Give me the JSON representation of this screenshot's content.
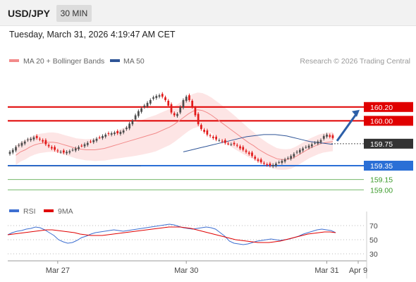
{
  "header": {
    "symbol": "USD/JPY",
    "timeframe": "30 MIN"
  },
  "datetime": "Tuesday, March 31, 2026 4:19:47 AM CET",
  "colors": {
    "up": "#4d4d4d",
    "down": "#e21a1a",
    "ma20": "#f28a8a",
    "ma50": "#2f5597",
    "band": "#fde0e0",
    "resistance": "#e00000",
    "support": "#2a6fd6",
    "target": "#3a9a2a",
    "arrow": "#2c5fa8",
    "rsi": "#3d6fd1",
    "rsi_ma": "#e00000"
  },
  "legend": {
    "ma20": "MA 20 + Bollinger Bands",
    "ma50": "MA 50",
    "rsi": "RSI",
    "rsi_ma": "9MA"
  },
  "copyright": "Research © 2026 Trading Central",
  "chart_data": {
    "type": "candlestick",
    "pair": "USD/JPY",
    "timeframe": "30 MIN",
    "y_range": [
      158.95,
      160.5
    ],
    "levels": [
      {
        "value": 160.2,
        "label": "160.20",
        "role": "resistance"
      },
      {
        "value": 160.0,
        "label": "160.00",
        "role": "resistance"
      },
      {
        "value": 159.75,
        "label": "159.75",
        "role": "current"
      },
      {
        "value": 159.35,
        "label": "159.35",
        "role": "support"
      },
      {
        "value": 159.15,
        "label": "159.15",
        "role": "target"
      },
      {
        "value": 159.0,
        "label": "159.00",
        "role": "target"
      }
    ],
    "x_labels": [
      {
        "index": 16,
        "label": "Mar 27"
      },
      {
        "index": 59,
        "label": "Mar 30"
      },
      {
        "index": 106,
        "label": "Mar 31"
      },
      {
        "index": 125,
        "label": "Apr 9"
      }
    ],
    "closes": [
      159.55,
      159.58,
      159.62,
      159.65,
      159.68,
      159.7,
      159.73,
      159.74,
      159.76,
      159.75,
      159.73,
      159.7,
      159.66,
      159.63,
      159.6,
      159.58,
      159.56,
      159.55,
      159.54,
      159.55,
      159.56,
      159.58,
      159.6,
      159.62,
      159.64,
      159.66,
      159.68,
      159.7,
      159.72,
      159.74,
      159.76,
      159.78,
      159.8,
      159.81,
      159.82,
      159.83,
      159.82,
      159.84,
      159.86,
      159.9,
      159.96,
      160.0,
      160.08,
      160.14,
      160.18,
      160.22,
      160.26,
      160.3,
      160.34,
      160.36,
      160.37,
      160.35,
      160.3,
      160.22,
      160.12,
      160.08,
      160.1,
      160.2,
      160.3,
      160.35,
      160.3,
      160.2,
      160.08,
      159.95,
      159.88,
      159.84,
      159.8,
      159.78,
      159.75,
      159.73,
      159.72,
      159.7,
      159.68,
      159.67,
      159.66,
      159.66,
      159.64,
      159.6,
      159.58,
      159.55,
      159.52,
      159.49,
      159.45,
      159.42,
      159.4,
      159.38,
      159.36,
      159.35,
      159.36,
      159.38,
      159.4,
      159.42,
      159.44,
      159.46,
      159.49,
      159.52,
      159.55,
      159.58,
      159.6,
      159.62,
      159.64,
      159.66,
      159.68,
      159.7,
      159.72,
      159.78,
      159.8,
      159.77,
      159.75
    ],
    "ma20": [
      159.5,
      159.55,
      159.58,
      159.62,
      159.65,
      159.67,
      159.68,
      159.69,
      159.69,
      159.68,
      159.66,
      159.64,
      159.62,
      159.6,
      159.59,
      159.58,
      159.58,
      159.58,
      159.59,
      159.6,
      159.62,
      159.64,
      159.66,
      159.68,
      159.7,
      159.72,
      159.74,
      159.76,
      159.78,
      159.8,
      159.82,
      159.85,
      159.88,
      159.91,
      159.95,
      160.0,
      160.05,
      160.1,
      160.14,
      160.16,
      160.15,
      160.12,
      160.08,
      160.03,
      159.98,
      159.93,
      159.88,
      159.83,
      159.78,
      159.73,
      159.68,
      159.64,
      159.59,
      159.55,
      159.51,
      159.48,
      159.45,
      159.44,
      159.44,
      159.45,
      159.48,
      159.52,
      159.56,
      159.6,
      159.63,
      159.66,
      159.68,
      159.69,
      159.7
    ],
    "ma20_x0": 2,
    "ma50": [
      159.55,
      159.57,
      159.59,
      159.61,
      159.63,
      159.65,
      159.67,
      159.69,
      159.71,
      159.73,
      159.75,
      159.77,
      159.78,
      159.79,
      159.8,
      159.8,
      159.8,
      159.79,
      159.78,
      159.76,
      159.74,
      159.72,
      159.7,
      159.69,
      159.68,
      159.67,
      159.66
    ],
    "ma50_x0": 58,
    "rsi": [
      57,
      60,
      62,
      63,
      65,
      66,
      68,
      67,
      64,
      60,
      56,
      50,
      47,
      45,
      46,
      49,
      53,
      55,
      58,
      60,
      61,
      62,
      63,
      64,
      63,
      62,
      63,
      64,
      65,
      66,
      67,
      68,
      69,
      70,
      71,
      72,
      71,
      69,
      67,
      66,
      65,
      66,
      67,
      68,
      67,
      65,
      60,
      55,
      48,
      45,
      44,
      43,
      44,
      46,
      48,
      49,
      50,
      51,
      50,
      49,
      50,
      51,
      53,
      55,
      58,
      60,
      62,
      64,
      65,
      64,
      63,
      60
    ],
    "rsi_ma": [
      57,
      58,
      59,
      60,
      61,
      62,
      63,
      64,
      64,
      63,
      62,
      61,
      60,
      58,
      57,
      56,
      56,
      56,
      57,
      58,
      59,
      60,
      61,
      62,
      63,
      64,
      65,
      66,
      67,
      68,
      68,
      68,
      67,
      66,
      64,
      62,
      60,
      58,
      56,
      54,
      52,
      50,
      49,
      48,
      47,
      46,
      46,
      46,
      47,
      48,
      50,
      52,
      54,
      56,
      58,
      59,
      60,
      61,
      61,
      60
    ],
    "rsi_levels": [
      70,
      50,
      30
    ]
  }
}
